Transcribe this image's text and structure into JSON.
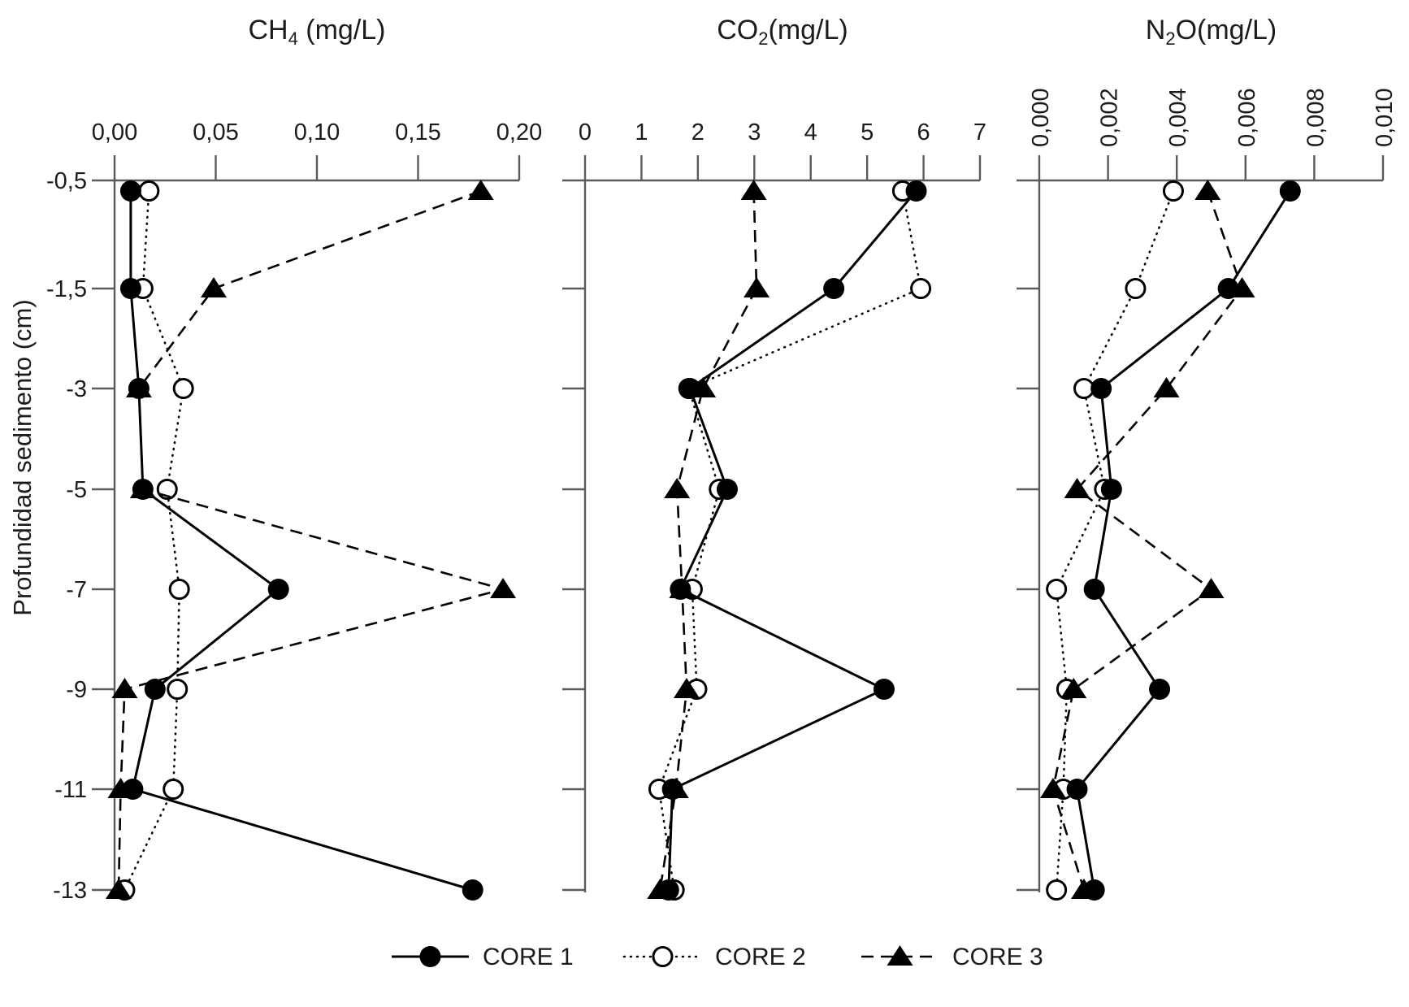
{
  "figure": {
    "y_axis_label": "Profundidad sedimento (cm)",
    "depth_labels": [
      "-0,5",
      "-1,5",
      "-3",
      "-5",
      "-7",
      "-9",
      "-11",
      "-13"
    ],
    "depths_cm": [
      -0.5,
      -1.5,
      -3,
      -5,
      -7,
      -9,
      -11,
      -13
    ],
    "legend_position": "bottom",
    "legend": [
      {
        "label": "CORE 1",
        "line": "solid",
        "marker": "filled-circle"
      },
      {
        "label": "CORE 2",
        "line": "dotted",
        "marker": "open-circle"
      },
      {
        "label": "CORE 3",
        "line": "dashed",
        "marker": "filled-triangle"
      }
    ],
    "colors": {
      "series": "#000000",
      "axis": "#5a5a5a",
      "text": "#1c1c1c",
      "background": "#ffffff"
    }
  },
  "chart_data": [
    {
      "id": "ch4",
      "type": "line",
      "title": "CH₄ (mg/L)",
      "title_parts": [
        {
          "text": "CH"
        },
        {
          "text": "4",
          "sub": true
        },
        {
          "text": " (mg/L)"
        }
      ],
      "xlim": [
        0,
        0.2
      ],
      "xtick_values": [
        0,
        0.05,
        0.1,
        0.15,
        0.2
      ],
      "xtick_labels": [
        "0,00",
        "0,05",
        "0,10",
        "0,15",
        "0,20"
      ],
      "rotated_xtick_labels": false,
      "categories": [
        -0.5,
        -1.5,
        -3,
        -5,
        -7,
        -9,
        -11,
        -13
      ],
      "ylabel": "Profundidad sedimento (cm)",
      "grid": false,
      "series": [
        {
          "name": "CORE 1",
          "values": [
            0.008,
            0.008,
            0.012,
            0.014,
            0.081,
            0.02,
            0.009,
            0.177
          ]
        },
        {
          "name": "CORE 2",
          "values": [
            0.017,
            0.014,
            0.034,
            0.026,
            0.032,
            0.031,
            0.029,
            0.005
          ]
        },
        {
          "name": "CORE 3",
          "values": [
            0.181,
            0.049,
            0.012,
            0.014,
            0.192,
            0.005,
            0.003,
            0.002
          ]
        }
      ]
    },
    {
      "id": "co2",
      "type": "line",
      "title": "CO₂(mg/L)",
      "title_parts": [
        {
          "text": "CO"
        },
        {
          "text": "2",
          "sub": true
        },
        {
          "text": "(mg/L)"
        }
      ],
      "xlim": [
        0,
        7
      ],
      "xtick_values": [
        0,
        1,
        2,
        3,
        4,
        5,
        6,
        7
      ],
      "xtick_labels": [
        "0",
        "1",
        "2",
        "3",
        "4",
        "5",
        "6",
        "7"
      ],
      "rotated_xtick_labels": false,
      "categories": [
        -0.5,
        -1.5,
        -3,
        -5,
        -7,
        -9,
        -11,
        -13
      ],
      "ylabel": "Profundidad sedimento (cm)",
      "grid": false,
      "series": [
        {
          "name": "CORE 1",
          "values": [
            5.87,
            4.41,
            1.86,
            2.52,
            1.69,
            5.3,
            1.55,
            1.48
          ]
        },
        {
          "name": "CORE 2",
          "values": [
            5.63,
            5.95,
            1.84,
            2.38,
            1.9,
            1.98,
            1.31,
            1.58
          ]
        },
        {
          "name": "CORE 3",
          "values": [
            2.99,
            3.04,
            2.09,
            1.63,
            1.72,
            1.8,
            1.61,
            1.33
          ]
        }
      ]
    },
    {
      "id": "n2o",
      "type": "line",
      "title": "N₂O(mg/L)",
      "title_parts": [
        {
          "text": "N"
        },
        {
          "text": "2",
          "sub": true
        },
        {
          "text": "O(mg/L)"
        }
      ],
      "xlim": [
        0,
        0.01
      ],
      "xtick_values": [
        0,
        0.002,
        0.004,
        0.006,
        0.008,
        0.01
      ],
      "xtick_labels": [
        "0,000",
        "0,002",
        "0,004",
        "0,006",
        "0,008",
        "0,010"
      ],
      "rotated_xtick_labels": true,
      "categories": [
        -0.5,
        -1.5,
        -3,
        -5,
        -7,
        -9,
        -11,
        -13
      ],
      "ylabel": "Profundidad sedimento (cm)",
      "grid": false,
      "series": [
        {
          "name": "CORE 1",
          "values": [
            0.0073,
            0.0055,
            0.0018,
            0.0021,
            0.0016,
            0.0035,
            0.0011,
            0.0016
          ]
        },
        {
          "name": "CORE 2",
          "values": [
            0.0039,
            0.0028,
            0.0013,
            0.0019,
            0.0005,
            0.0008,
            0.0007,
            0.0005
          ]
        },
        {
          "name": "CORE 3",
          "values": [
            0.0049,
            0.0059,
            0.0037,
            0.0011,
            0.005,
            0.001,
            0.0004,
            0.0013
          ]
        }
      ]
    }
  ]
}
